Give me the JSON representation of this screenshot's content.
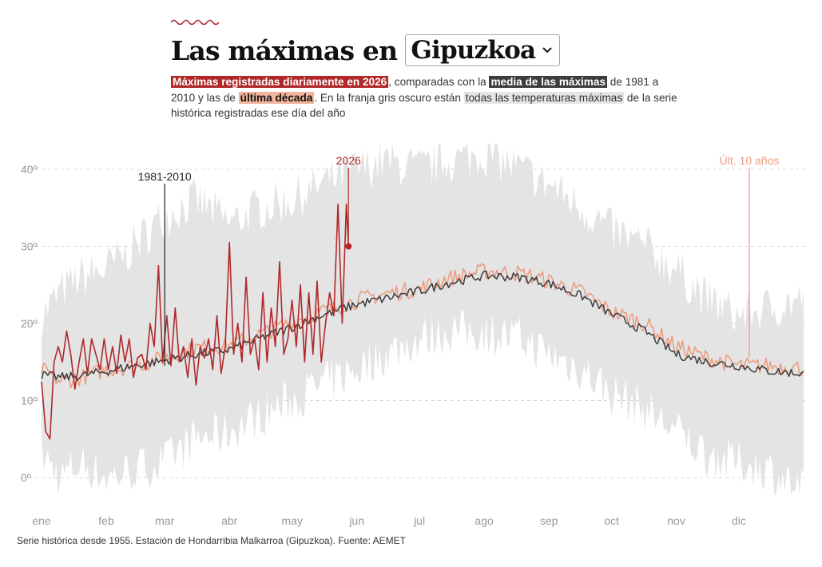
{
  "header": {
    "title": "Las máximas en",
    "select_value": "Gipuzkoa",
    "chevron_icon": "chevron-down-icon",
    "accent_color": "#b0282a"
  },
  "description": {
    "hl_2026": "Máximas registradas diariamente en 2026",
    "t1": ", comparadas con la ",
    "hl_media": "media de las máximas",
    "t2": " de 1981 a 2010 y las de ",
    "hl_decada": "última década",
    "t3": ". En la franja gris oscuro están ",
    "hl_todas": "todas las temperaturas máximas",
    "t4": " de la serie histórica registradas ese día del año"
  },
  "footer": {
    "text": "Serie histórica desde 1955. Estación de Hondarribia Malkarroa (Gipuzkoa). Fuente: AEMET"
  },
  "chart_data": {
    "type": "line",
    "x_unit": "day of year",
    "ylim": [
      -4,
      43
    ],
    "yticks": [
      0,
      10,
      20,
      30,
      40
    ],
    "ytick_labels": [
      "0º",
      "10º",
      "20º",
      "30º",
      "40º"
    ],
    "months": [
      {
        "label": "ene",
        "day": 1
      },
      {
        "label": "feb",
        "day": 32
      },
      {
        "label": "mar",
        "day": 60
      },
      {
        "label": "abr",
        "day": 91
      },
      {
        "label": "may",
        "day": 121
      },
      {
        "label": "jun",
        "day": 152
      },
      {
        "label": "jul",
        "day": 182
      },
      {
        "label": "ago",
        "day": 213
      },
      {
        "label": "sep",
        "day": 244
      },
      {
        "label": "oct",
        "day": 274
      },
      {
        "label": "nov",
        "day": 305
      },
      {
        "label": "dic",
        "day": 335
      }
    ],
    "colors": {
      "y2026": "#b0282a",
      "media": "#3d3d3d",
      "decada": "#eb9a7c",
      "band": "#e4e4e4",
      "grid": "#d9d9d9"
    },
    "annotations": [
      {
        "label": "1981-2010",
        "series": "media",
        "day": 60,
        "value": 14.5
      },
      {
        "label": "2026",
        "series": "y2026",
        "day": 148,
        "value": 30
      },
      {
        "label": "Últ. 10 años",
        "series": "decada",
        "day": 340,
        "value": 15.5
      }
    ],
    "band": {
      "name": "Todas las máximas de la serie histórica",
      "days": [
        1,
        10,
        20,
        32,
        45,
        60,
        75,
        91,
        105,
        121,
        135,
        152,
        165,
        182,
        195,
        213,
        230,
        244,
        260,
        274,
        290,
        305,
        320,
        335,
        350,
        366
      ],
      "upper": [
        21,
        24,
        26,
        27,
        30,
        34,
        36,
        33,
        35,
        36,
        38,
        40,
        41,
        40,
        41,
        42,
        40,
        38,
        35,
        32,
        30,
        27,
        23,
        21,
        22,
        23
      ],
      "lower": [
        3,
        0,
        2,
        0,
        1,
        2,
        5,
        6,
        8,
        10,
        12,
        14,
        16,
        18,
        19,
        19,
        18,
        16,
        14,
        11,
        9,
        6,
        3,
        2,
        1,
        -2
      ]
    },
    "series": [
      {
        "key": "media",
        "days": [
          1,
          10,
          20,
          32,
          45,
          60,
          75,
          91,
          105,
          121,
          135,
          152,
          165,
          182,
          195,
          213,
          230,
          244,
          260,
          274,
          290,
          305,
          320,
          335,
          350,
          366
        ],
        "values": [
          13.3,
          13,
          13.2,
          13.8,
          14.5,
          15.2,
          16,
          16.6,
          18,
          19.5,
          21,
          22.5,
          23.2,
          24.2,
          25.2,
          26.2,
          26,
          25.2,
          23.5,
          21.2,
          19,
          16,
          15,
          14.5,
          13.8,
          13.5
        ]
      },
      {
        "key": "decada",
        "days": [
          1,
          10,
          20,
          32,
          45,
          60,
          75,
          91,
          105,
          121,
          135,
          152,
          165,
          182,
          195,
          213,
          230,
          244,
          260,
          274,
          290,
          305,
          320,
          335,
          350,
          366
        ],
        "values": [
          14,
          12.5,
          13,
          14,
          14.5,
          15.5,
          16.8,
          17.2,
          18.5,
          20.2,
          21.5,
          23,
          23.8,
          24.5,
          25.8,
          26.8,
          26.5,
          25.5,
          24,
          21.5,
          20,
          17,
          15.5,
          14.5,
          14.5,
          14.2
        ]
      },
      {
        "key": "y2026",
        "days": [
          1,
          3,
          5,
          7,
          9,
          11,
          13,
          15,
          17,
          19,
          21,
          23,
          25,
          27,
          29,
          31,
          33,
          35,
          37,
          39,
          41,
          43,
          45,
          47,
          49,
          51,
          53,
          55,
          57,
          59,
          61,
          63,
          65,
          67,
          69,
          71,
          73,
          75,
          77,
          79,
          81,
          83,
          85,
          87,
          89,
          91,
          93,
          95,
          97,
          99,
          101,
          103,
          105,
          107,
          109,
          111,
          113,
          115,
          117,
          119,
          121,
          123,
          125,
          127,
          129,
          131,
          133,
          135,
          137,
          139,
          141,
          143,
          145,
          147,
          148
        ],
        "values": [
          12.5,
          6,
          5,
          15,
          17,
          15,
          19,
          16,
          11.5,
          15,
          18,
          13.5,
          18,
          16,
          14,
          18,
          14,
          17,
          13.5,
          18.5,
          15,
          18,
          13,
          15.5,
          16,
          14,
          20,
          17,
          27.5,
          15,
          21,
          14.5,
          22,
          15,
          17,
          13,
          18,
          12,
          17,
          15.5,
          18,
          14,
          21,
          13.5,
          17,
          30.5,
          16,
          20,
          15,
          26,
          16,
          18,
          14,
          24,
          15,
          22,
          17,
          28,
          16,
          18,
          23,
          17,
          25,
          15,
          24,
          16,
          25.5,
          15,
          20,
          24,
          21,
          35.5,
          20,
          35.5,
          30
        ]
      }
    ]
  }
}
